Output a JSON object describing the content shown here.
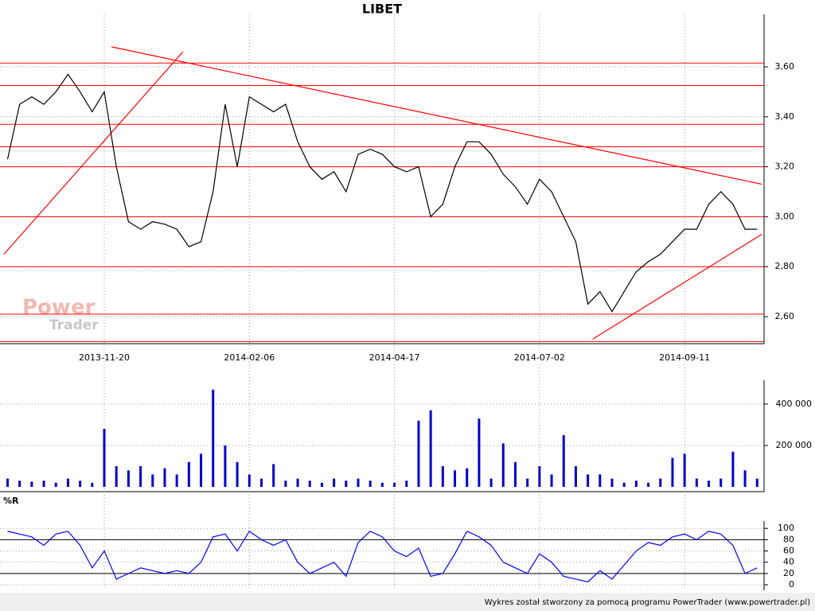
{
  "footer": "Wykres został stworzony za pomocą programu PowerTrader (www.powertrader.pl)",
  "watermark": [
    "Power",
    "Trader"
  ],
  "chart_data": [
    {
      "type": "line",
      "title": "LIBET",
      "color": "#000000",
      "grid": true,
      "categories": [
        null,
        null,
        null,
        null,
        null,
        null,
        null,
        null,
        "2013-11-20",
        null,
        null,
        null,
        null,
        null,
        null,
        null,
        null,
        null,
        null,
        null,
        "2014-02-06",
        null,
        null,
        null,
        null,
        null,
        null,
        null,
        null,
        null,
        null,
        null,
        "2014-04-17",
        null,
        null,
        null,
        null,
        null,
        null,
        null,
        null,
        null,
        null,
        null,
        "2014-07-02",
        null,
        null,
        null,
        null,
        null,
        null,
        null,
        null,
        null,
        null,
        null,
        "2014-09-11",
        null,
        null,
        null,
        null,
        null,
        null
      ],
      "values": [
        3.23,
        3.45,
        3.48,
        3.45,
        3.5,
        3.57,
        3.5,
        3.42,
        3.5,
        3.2,
        2.98,
        2.95,
        2.98,
        2.97,
        2.95,
        2.88,
        2.9,
        3.1,
        3.45,
        3.2,
        3.48,
        3.45,
        3.42,
        3.45,
        3.3,
        3.2,
        3.15,
        3.18,
        3.1,
        3.25,
        3.27,
        3.25,
        3.2,
        3.18,
        3.2,
        3.0,
        3.05,
        3.2,
        3.3,
        3.3,
        3.25,
        3.17,
        3.12,
        3.05,
        3.15,
        3.1,
        3.0,
        2.9,
        2.65,
        2.7,
        2.62,
        2.7,
        2.78,
        2.82,
        2.85,
        2.9,
        2.95,
        2.95,
        3.05,
        3.1,
        3.05,
        2.95,
        2.95
      ],
      "ylim": [
        2.5,
        3.8
      ],
      "yticks": [
        {
          "value": 2.6,
          "label": "2,60"
        },
        {
          "value": 2.8,
          "label": "2,80"
        },
        {
          "value": 3.0,
          "label": "3,00"
        },
        {
          "value": 3.2,
          "label": "3,20"
        },
        {
          "value": 3.4,
          "label": "3,40"
        },
        {
          "value": 3.6,
          "label": "3,60"
        }
      ],
      "levels": [
        3.615,
        3.525,
        3.37,
        3.28,
        3.2,
        3.0,
        2.8,
        2.61,
        2.5
      ],
      "level_color": "#ff0000",
      "trend_lines": [
        [
          [
            8.6,
            3.68
          ],
          [
            62.4,
            3.13
          ]
        ],
        [
          [
            -0.3,
            2.85
          ],
          [
            14.5,
            3.66
          ]
        ],
        [
          [
            48.4,
            2.51
          ],
          [
            62.4,
            2.93
          ]
        ]
      ]
    },
    {
      "type": "bar",
      "color": "#0000cc",
      "grid": true,
      "values": [
        40000,
        30000,
        25000,
        30000,
        20000,
        40000,
        30000,
        20000,
        280000,
        100000,
        80000,
        100000,
        60000,
        90000,
        60000,
        120000,
        160000,
        470000,
        200000,
        120000,
        60000,
        40000,
        110000,
        30000,
        40000,
        30000,
        20000,
        40000,
        30000,
        40000,
        30000,
        20000,
        20000,
        30000,
        320000,
        370000,
        100000,
        80000,
        90000,
        330000,
        40000,
        210000,
        120000,
        40000,
        100000,
        60000,
        250000,
        100000,
        60000,
        60000,
        40000,
        20000,
        30000,
        20000,
        40000,
        140000,
        160000,
        40000,
        30000,
        40000,
        170000,
        80000,
        40000
      ],
      "ylim": [
        0,
        515000
      ],
      "yticks": [
        {
          "value": 200000,
          "label": "200 000"
        },
        {
          "value": 400000,
          "label": "400 000"
        }
      ]
    },
    {
      "type": "line",
      "title": "%R",
      "color": "#0000ff",
      "grid": true,
      "values": [
        95,
        90,
        85,
        70,
        90,
        95,
        70,
        30,
        60,
        10,
        20,
        30,
        25,
        20,
        25,
        20,
        40,
        85,
        90,
        60,
        95,
        80,
        70,
        80,
        40,
        20,
        30,
        40,
        15,
        75,
        95,
        85,
        60,
        50,
        65,
        15,
        20,
        55,
        95,
        85,
        70,
        40,
        30,
        20,
        55,
        40,
        15,
        10,
        5,
        25,
        10,
        35,
        60,
        75,
        70,
        85,
        90,
        80,
        95,
        90,
        70,
        20,
        30
      ],
      "ylim": [
        -9,
        113
      ],
      "yticks": [
        0,
        20,
        40,
        60,
        80,
        100
      ],
      "levels": [
        20,
        80
      ],
      "level_color": "#000000"
    }
  ]
}
